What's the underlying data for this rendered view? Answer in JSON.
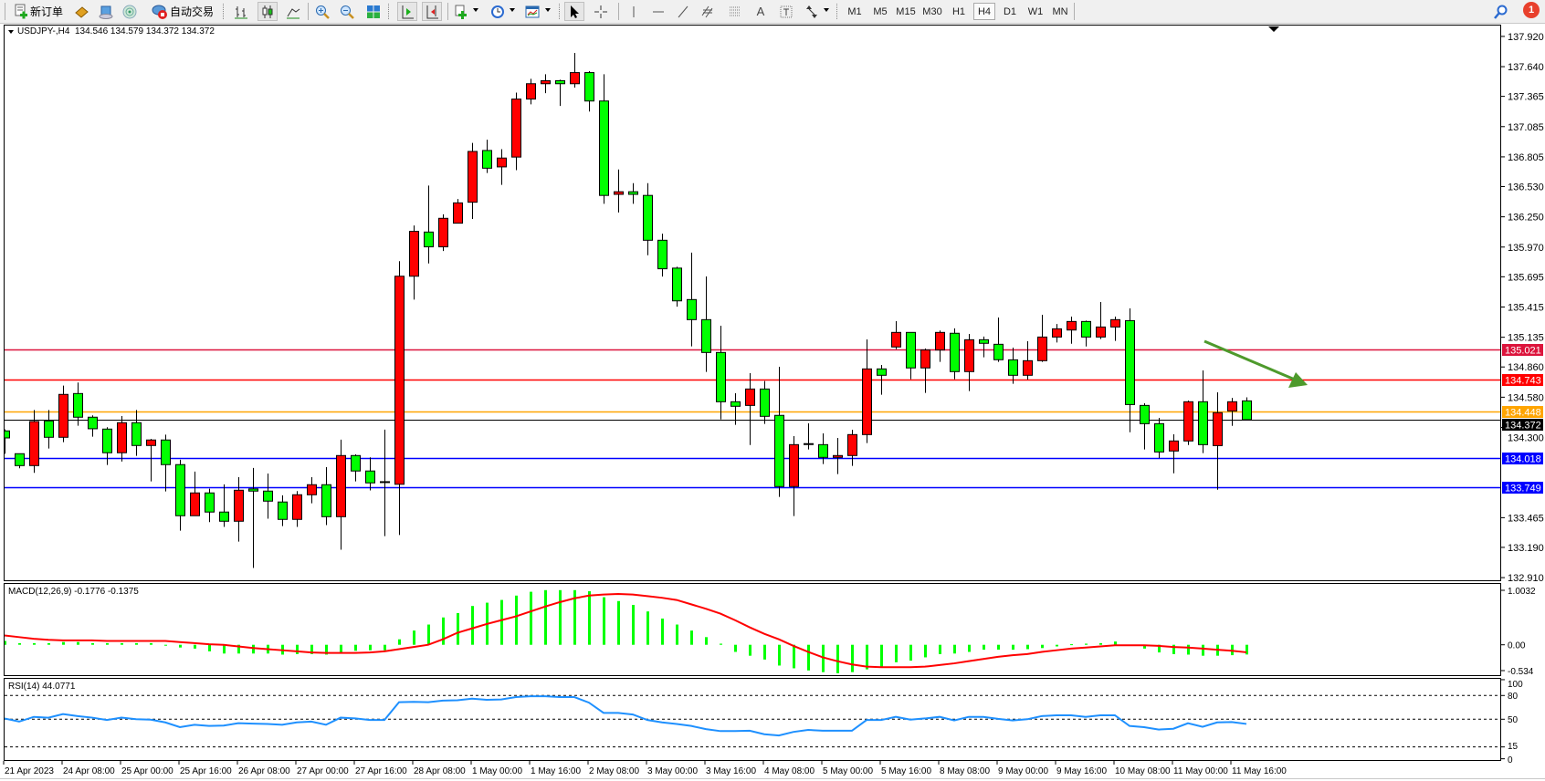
{
  "toolbar": {
    "new_order_label": "新订单",
    "auto_trading_label": "自动交易",
    "timeframes": [
      "M1",
      "M5",
      "M15",
      "M30",
      "H1",
      "H4",
      "D1",
      "W1",
      "MN"
    ],
    "active_timeframe": "H4",
    "text_tool_label": "A",
    "notification_count": "1"
  },
  "main_panel": {
    "title": "USDJPY-,H4  134.546 134.579 134.372 134.372"
  },
  "macd_panel": {
    "title": "MACD(12,26,9) -0.1776 -0.1375",
    "scale_labels": [
      "1.0032",
      "0.00",
      "-0.534"
    ]
  },
  "rsi_panel": {
    "title": "RSI(14) 44.0771",
    "scale_labels": [
      "100",
      "80",
      "50",
      "15",
      "0"
    ]
  },
  "colors": {
    "bull_candle": "#ff0000",
    "bear_candle": "#00ff00",
    "macd_histogram": "#00ff00",
    "macd_signal": "#ff0000",
    "rsi_line": "#1e90ff",
    "arrow": "#4e9a2c"
  },
  "chart_data": {
    "type": "candlestick",
    "symbol": "USDJPY-",
    "timeframe": "H4",
    "ylim": [
      132.91,
      137.92
    ],
    "price_ticks": [
      "137.920",
      "137.640",
      "137.365",
      "137.085",
      "136.805",
      "136.530",
      "136.250",
      "135.970",
      "135.695",
      "135.415",
      "135.135",
      "134.860",
      "134.580",
      "134.300",
      "133.465",
      "133.190",
      "132.910"
    ],
    "time_labels": [
      "21 Apr 2023",
      "24 Apr 08:00",
      "25 Apr 00:00",
      "25 Apr 16:00",
      "26 Apr 08:00",
      "27 Apr 00:00",
      "27 Apr 16:00",
      "28 Apr 08:00",
      "1 May 00:00",
      "1 May 16:00",
      "2 May 08:00",
      "3 May 00:00",
      "3 May 16:00",
      "4 May 08:00",
      "5 May 00:00",
      "5 May 16:00",
      "8 May 08:00",
      "9 May 00:00",
      "9 May 16:00",
      "10 May 08:00",
      "11 May 00:00",
      "11 May 16:00"
    ],
    "bars_per_time_label": 4,
    "horizontal_lines": [
      {
        "price": 135.021,
        "label": "135.021",
        "color": "#dc143c"
      },
      {
        "price": 134.743,
        "label": "134.743",
        "color": "#ff0000"
      },
      {
        "price": 134.448,
        "label": "134.448",
        "color": "#ffa500"
      },
      {
        "price": 134.372,
        "label": "134.372",
        "color": "#000000",
        "thin": true
      },
      {
        "price": 134.018,
        "label": "134.018",
        "color": "#0000ff"
      },
      {
        "price": 133.749,
        "label": "133.749",
        "color": "#0000ff"
      }
    ],
    "candles_ohlc": [
      [
        134.268,
        134.282,
        134.057,
        134.203
      ],
      [
        134.057,
        134.057,
        133.922,
        133.947
      ],
      [
        133.947,
        134.462,
        133.88,
        134.355
      ],
      [
        134.361,
        134.462,
        134.105,
        134.209
      ],
      [
        134.209,
        134.688,
        134.164,
        134.606
      ],
      [
        134.614,
        134.716,
        134.316,
        134.395
      ],
      [
        134.395,
        134.412,
        134.215,
        134.288
      ],
      [
        134.285,
        134.302,
        133.953,
        134.066
      ],
      [
        134.066,
        134.406,
        133.984,
        134.344
      ],
      [
        134.344,
        134.462,
        134.037,
        134.133
      ],
      [
        134.133,
        134.195,
        133.801,
        134.184
      ],
      [
        134.184,
        134.234,
        133.708,
        133.956
      ],
      [
        133.956,
        134.001,
        133.345,
        133.483
      ],
      [
        133.483,
        133.891,
        133.483,
        133.694
      ],
      [
        133.694,
        133.733,
        133.424,
        133.517
      ],
      [
        133.517,
        133.773,
        133.379,
        133.432
      ],
      [
        133.432,
        133.84,
        133.243,
        133.719
      ],
      [
        133.731,
        133.925,
        132.999,
        133.711
      ],
      [
        133.711,
        133.874,
        133.455,
        133.618
      ],
      [
        133.61,
        133.672,
        133.387,
        133.449
      ],
      [
        133.449,
        133.711,
        133.379,
        133.677
      ],
      [
        133.677,
        133.84,
        133.598,
        133.77
      ],
      [
        133.77,
        133.933,
        133.396,
        133.474
      ],
      [
        133.474,
        134.187,
        133.168,
        134.04
      ],
      [
        134.04,
        134.051,
        133.801,
        133.897
      ],
      [
        133.897,
        134.023,
        133.717,
        133.787
      ],
      [
        133.793,
        134.28,
        133.294,
        133.795
      ],
      [
        133.774,
        135.839,
        133.304,
        135.7
      ],
      [
        135.7,
        136.17,
        135.484,
        136.115
      ],
      [
        136.109,
        136.539,
        135.818,
        135.972
      ],
      [
        135.972,
        136.273,
        135.933,
        136.236
      ],
      [
        136.191,
        136.415,
        136.191,
        136.379
      ],
      [
        136.385,
        136.934,
        136.23,
        136.855
      ],
      [
        136.864,
        136.964,
        136.655,
        136.7
      ],
      [
        136.712,
        136.876,
        136.546,
        136.794
      ],
      [
        136.803,
        137.4,
        136.682,
        137.34
      ],
      [
        137.34,
        137.528,
        137.291,
        137.482
      ],
      [
        137.482,
        137.57,
        137.394,
        137.51
      ],
      [
        137.51,
        137.519,
        137.276,
        137.482
      ],
      [
        137.482,
        137.767,
        137.446,
        137.585
      ],
      [
        137.585,
        137.598,
        137.225,
        137.322
      ],
      [
        137.322,
        137.57,
        136.37,
        136.448
      ],
      [
        136.458,
        136.688,
        136.29,
        136.482
      ],
      [
        136.482,
        136.561,
        136.37,
        136.458
      ],
      [
        136.448,
        136.561,
        135.894,
        136.033
      ],
      [
        136.033,
        136.094,
        135.697,
        135.769
      ],
      [
        135.775,
        135.788,
        135.418,
        135.472
      ],
      [
        135.484,
        135.918,
        135.051,
        135.298
      ],
      [
        135.298,
        135.698,
        134.814,
        134.994
      ],
      [
        134.994,
        135.242,
        134.375,
        134.538
      ],
      [
        134.538,
        134.617,
        134.324,
        134.496
      ],
      [
        134.504,
        134.803,
        134.138,
        134.656
      ],
      [
        134.656,
        134.73,
        134.333,
        134.403
      ],
      [
        134.412,
        134.862,
        133.657,
        133.753
      ],
      [
        133.753,
        134.22,
        133.48,
        134.141
      ],
      [
        134.147,
        134.338,
        134.096,
        134.145
      ],
      [
        134.141,
        134.245,
        133.961,
        134.023
      ],
      [
        134.023,
        134.203,
        133.868,
        134.04
      ],
      [
        134.04,
        134.279,
        133.944,
        134.234
      ],
      [
        134.234,
        135.115,
        134.155,
        134.842
      ],
      [
        134.842,
        134.879,
        134.603,
        134.783
      ],
      [
        135.045,
        135.284,
        135.025,
        135.18
      ],
      [
        135.18,
        135.18,
        134.747,
        134.851
      ],
      [
        134.851,
        135.031,
        134.62,
        135.017
      ],
      [
        135.017,
        135.197,
        134.907,
        135.18
      ],
      [
        135.172,
        135.217,
        134.747,
        134.817
      ],
      [
        134.817,
        135.166,
        134.637,
        135.112
      ],
      [
        135.112,
        135.141,
        134.949,
        135.079
      ],
      [
        135.07,
        135.318,
        134.907,
        134.927
      ],
      [
        134.926,
        135.039,
        134.704,
        134.783
      ],
      [
        134.783,
        135.098,
        134.743,
        134.918
      ],
      [
        134.918,
        135.343,
        134.907,
        135.137
      ],
      [
        135.137,
        135.258,
        135.087,
        135.213
      ],
      [
        135.202,
        135.326,
        135.075,
        135.281
      ],
      [
        135.281,
        135.289,
        135.05,
        135.137
      ],
      [
        135.137,
        135.461,
        135.118,
        135.23
      ],
      [
        135.23,
        135.326,
        135.101,
        135.298
      ],
      [
        135.289,
        135.402,
        134.256,
        134.512
      ],
      [
        134.504,
        134.524,
        134.096,
        134.335
      ],
      [
        134.335,
        134.389,
        134.017,
        134.073
      ],
      [
        134.082,
        134.237,
        133.876,
        134.175
      ],
      [
        134.175,
        134.549,
        134.138,
        134.538
      ],
      [
        134.538,
        134.828,
        134.062,
        134.141
      ],
      [
        134.132,
        134.625,
        133.724,
        134.437
      ],
      [
        134.453,
        134.574,
        134.315,
        134.538
      ],
      [
        134.546,
        134.579,
        134.372,
        134.372
      ]
    ],
    "macd": {
      "ylim": [
        -0.534,
        1.0032
      ],
      "histogram": [
        0.07,
        0.03,
        0.03,
        0.03,
        0.05,
        0.05,
        0.03,
        0.03,
        0.03,
        0.03,
        0.03,
        0.0,
        -0.05,
        -0.07,
        -0.12,
        -0.16,
        -0.16,
        -0.16,
        -0.16,
        -0.18,
        -0.17,
        -0.17,
        -0.18,
        -0.14,
        -0.11,
        -0.1,
        -0.1,
        0.1,
        0.26,
        0.37,
        0.5,
        0.58,
        0.71,
        0.77,
        0.82,
        0.9,
        0.97,
        1.0,
        1.0,
        1.0,
        0.98,
        0.87,
        0.8,
        0.73,
        0.61,
        0.48,
        0.37,
        0.26,
        0.14,
        0.02,
        -0.13,
        -0.2,
        -0.27,
        -0.38,
        -0.43,
        -0.47,
        -0.5,
        -0.52,
        -0.5,
        -0.45,
        -0.4,
        -0.32,
        -0.29,
        -0.23,
        -0.17,
        -0.16,
        -0.13,
        -0.09,
        -0.09,
        -0.09,
        -0.08,
        -0.06,
        -0.03,
        0.01,
        0.02,
        0.03,
        0.06,
        0.0,
        -0.07,
        -0.14,
        -0.17,
        -0.18,
        -0.2,
        -0.2,
        -0.19,
        -0.1776
      ],
      "signal": [
        0.17,
        0.14,
        0.11,
        0.09,
        0.08,
        0.08,
        0.08,
        0.07,
        0.07,
        0.07,
        0.07,
        0.07,
        0.05,
        0.03,
        0.01,
        0.0,
        -0.03,
        -0.06,
        -0.08,
        -0.1,
        -0.12,
        -0.14,
        -0.15,
        -0.15,
        -0.15,
        -0.14,
        -0.12,
        -0.08,
        -0.04,
        0.0,
        0.1,
        0.22,
        0.3,
        0.38,
        0.45,
        0.52,
        0.61,
        0.7,
        0.78,
        0.85,
        0.9,
        0.92,
        0.93,
        0.92,
        0.89,
        0.86,
        0.82,
        0.74,
        0.66,
        0.57,
        0.45,
        0.32,
        0.2,
        0.1,
        -0.02,
        -0.13,
        -0.23,
        -0.3,
        -0.36,
        -0.4,
        -0.41,
        -0.41,
        -0.41,
        -0.4,
        -0.37,
        -0.34,
        -0.3,
        -0.26,
        -0.22,
        -0.19,
        -0.17,
        -0.13,
        -0.1,
        -0.07,
        -0.05,
        -0.03,
        -0.01,
        -0.01,
        -0.01,
        -0.02,
        -0.04,
        -0.05,
        -0.07,
        -0.09,
        -0.11,
        -0.1375
      ]
    },
    "rsi": {
      "ylim": [
        0,
        100
      ],
      "levels": [
        80,
        50,
        15
      ],
      "values": [
        51,
        47,
        53,
        52,
        56.5,
        54,
        52,
        49,
        52,
        50,
        49.5,
        46,
        40,
        43,
        41.5,
        42,
        45,
        44.5,
        44,
        43,
        46,
        47,
        43,
        52,
        51,
        49,
        49,
        71.5,
        72,
        71.5,
        73.5,
        74,
        76,
        74.5,
        75,
        78,
        79,
        79,
        78,
        78,
        71,
        58,
        58,
        56,
        49,
        46,
        44,
        41.5,
        37.5,
        35,
        35,
        35.5,
        31,
        29.5,
        34,
        36.5,
        35.5,
        35.5,
        35.5,
        49,
        49,
        53,
        49.5,
        51,
        53,
        48.5,
        53,
        53,
        50.5,
        48.5,
        50,
        54,
        55,
        55,
        53,
        55,
        55,
        41.5,
        40,
        37,
        38,
        45,
        40.5,
        46,
        46.5,
        44.0771
      ]
    },
    "annotations": [
      {
        "type": "arrow",
        "direction": "down-right",
        "color": "#4e9a2c"
      }
    ]
  }
}
